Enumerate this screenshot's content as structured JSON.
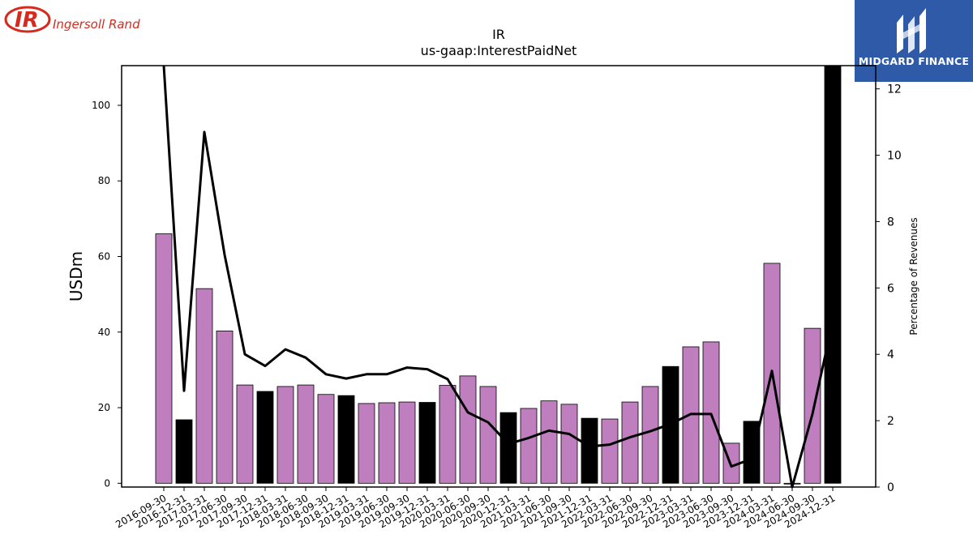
{
  "logos": {
    "left_text": "Ingersoll Rand",
    "left_mark": "IR",
    "right_text": "MIDGARD FINANCE",
    "colors": {
      "ingersoll_red": "#d52b1e",
      "midgard_blue": "#2f5aa8"
    }
  },
  "chart_data": {
    "type": "bar",
    "title": "IR",
    "subtitle": "us-gaap:InterestPaidNet",
    "ylabel": "USDm",
    "ylabel_right": "Percentage of Revenues",
    "ylim": [
      -1,
      110.5
    ],
    "ylim_right": [
      0,
      12.7
    ],
    "yticks": [
      0,
      20,
      40,
      60,
      80,
      100
    ],
    "yticks_right": [
      0,
      2,
      4,
      6,
      8,
      10,
      12
    ],
    "grid": false,
    "colors": {
      "quarter": "#bf7fbf",
      "year_end": "#000000",
      "line": "#000000"
    },
    "categories": [
      "2016-09-30",
      "2016-12-31",
      "2017-03-31",
      "2017-06-30",
      "2017-09-30",
      "2017-12-31",
      "2018-03-31",
      "2018-06-30",
      "2018-09-30",
      "2018-12-31",
      "2019-03-31",
      "2019-06-30",
      "2019-09-30",
      "2019-12-31",
      "2020-03-31",
      "2020-06-30",
      "2020-09-30",
      "2020-12-31",
      "2021-03-31",
      "2021-06-30",
      "2021-09-30",
      "2021-12-31",
      "2022-03-31",
      "2022-06-30",
      "2022-09-30",
      "2022-12-31",
      "2023-03-31",
      "2023-06-30",
      "2023-09-30",
      "2023-12-31",
      "2024-03-31",
      "2024-06-30",
      "2024-09-30",
      "2024-12-31"
    ],
    "series": [
      {
        "kind": "bar",
        "values": [
          66,
          16.8,
          51.5,
          40.3,
          26,
          24.3,
          25.6,
          26,
          23.5,
          23.2,
          21.1,
          21.3,
          21.5,
          21.4,
          25.9,
          28.4,
          25.6,
          18.7,
          19.8,
          21.8,
          20.9,
          17.2,
          17.0,
          21.5,
          25.6,
          30.9,
          36.1,
          37.4,
          10.6,
          16.4,
          58.2,
          -0.2,
          41.0,
          120
        ],
        "year_end": [
          false,
          true,
          false,
          false,
          false,
          true,
          false,
          false,
          false,
          true,
          false,
          false,
          false,
          true,
          false,
          false,
          false,
          true,
          false,
          false,
          false,
          true,
          false,
          false,
          false,
          true,
          false,
          false,
          false,
          true,
          false,
          false,
          false,
          true
        ]
      },
      {
        "kind": "line",
        "axis": "right",
        "values": [
          13.0,
          2.9,
          10.7,
          7.0,
          4.0,
          3.65,
          4.15,
          3.9,
          3.4,
          3.27,
          3.4,
          3.4,
          3.6,
          3.55,
          3.25,
          2.25,
          1.95,
          1.3,
          1.48,
          1.7,
          1.6,
          1.22,
          1.28,
          1.5,
          1.68,
          1.9,
          2.2,
          2.2,
          0.62,
          0.85,
          3.5,
          0.0,
          2.2,
          5.0
        ]
      }
    ]
  }
}
